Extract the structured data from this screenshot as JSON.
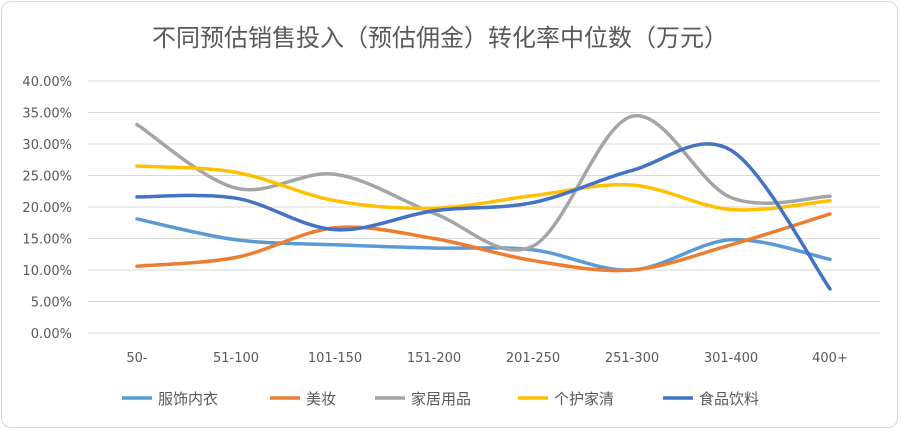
{
  "chart_data": {
    "type": "line",
    "smooth": true,
    "title": "不同预估销售投入（预估佣金）转化率中位数（万元）",
    "xlabel": "",
    "ylabel": "",
    "ylim": [
      0,
      40
    ],
    "ytick_labels": [
      "0.00%",
      "5.00%",
      "10.00%",
      "15.00%",
      "20.00%",
      "25.00%",
      "30.00%",
      "35.00%",
      "40.00%"
    ],
    "grid": true,
    "legend_position": "bottom",
    "categories": [
      "50-",
      "51-100",
      "101-150",
      "151-200",
      "201-250",
      "251-300",
      "301-400",
      "400+"
    ],
    "series": [
      {
        "name": "服饰内衣",
        "color": "#5B9BD5",
        "values": [
          18.1,
          14.8,
          14.0,
          13.5,
          13.2,
          10.0,
          14.8,
          11.7
        ]
      },
      {
        "name": "美妆",
        "color": "#ED7D31",
        "values": [
          10.6,
          12.0,
          16.7,
          15.0,
          11.5,
          10.0,
          14.0,
          18.9
        ]
      },
      {
        "name": "家居用品",
        "color": "#A5A5A5",
        "values": [
          33.1,
          23.0,
          25.2,
          19.0,
          13.8,
          34.4,
          21.5,
          21.7
        ]
      },
      {
        "name": "个护家清",
        "color": "#FFC000",
        "values": [
          26.5,
          25.5,
          21.0,
          19.8,
          21.8,
          23.5,
          19.6,
          21.0
        ]
      },
      {
        "name": "食品饮料",
        "color": "#4472C4",
        "values": [
          21.6,
          21.4,
          16.4,
          19.4,
          20.7,
          25.8,
          29.0,
          7.0
        ]
      }
    ]
  }
}
